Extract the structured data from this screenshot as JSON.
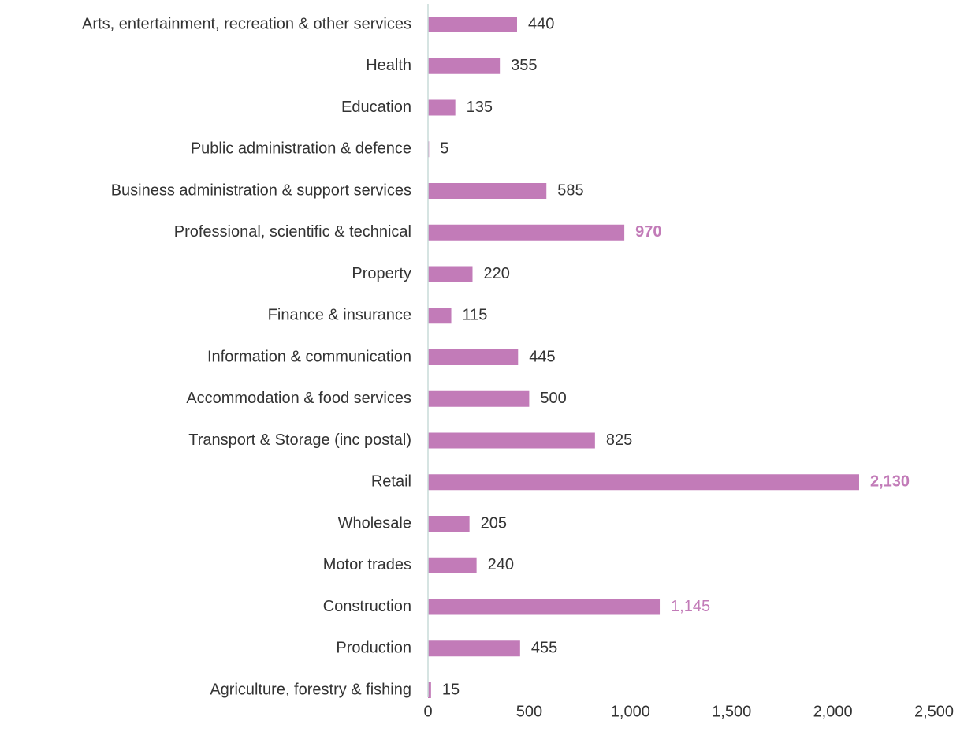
{
  "chart_data": {
    "type": "barh",
    "categories": [
      "Arts, entertainment, recreation & other services",
      "Health",
      "Education",
      "Public administration & defence",
      "Business administration & support services",
      "Professional, scientific & technical",
      "Property",
      "Finance & insurance",
      "Information & communication",
      "Accommodation & food services",
      "Transport & Storage (inc postal)",
      "Retail",
      "Wholesale",
      "Motor trades",
      "Construction",
      "Production",
      "Agriculture, forestry & fishing"
    ],
    "values": [
      440,
      355,
      135,
      5,
      585,
      970,
      220,
      115,
      445,
      500,
      825,
      2130,
      205,
      240,
      1145,
      455,
      15
    ],
    "value_labels": [
      "440",
      "355",
      "135",
      "5",
      "585",
      "970",
      "220",
      "115",
      "445",
      "500",
      "825",
      "2,130",
      "205",
      "240",
      "1,145",
      "455",
      "15"
    ],
    "value_label_style": [
      "normal",
      "normal",
      "normal",
      "normal",
      "normal",
      "bold",
      "normal",
      "normal",
      "normal",
      "normal",
      "normal",
      "bold",
      "normal",
      "normal",
      "accent",
      "normal",
      "normal"
    ],
    "color": "#c27bb8",
    "xlim": [
      0,
      2500
    ],
    "xticks": [
      0,
      500,
      {
        "value": 1000,
        "label": "1,000"
      },
      {
        "value": 1500,
        "label": "1,500"
      },
      {
        "value": 2000,
        "label": "2,000"
      },
      {
        "value": 2500,
        "label": "2,500"
      }
    ],
    "grid": false
  }
}
